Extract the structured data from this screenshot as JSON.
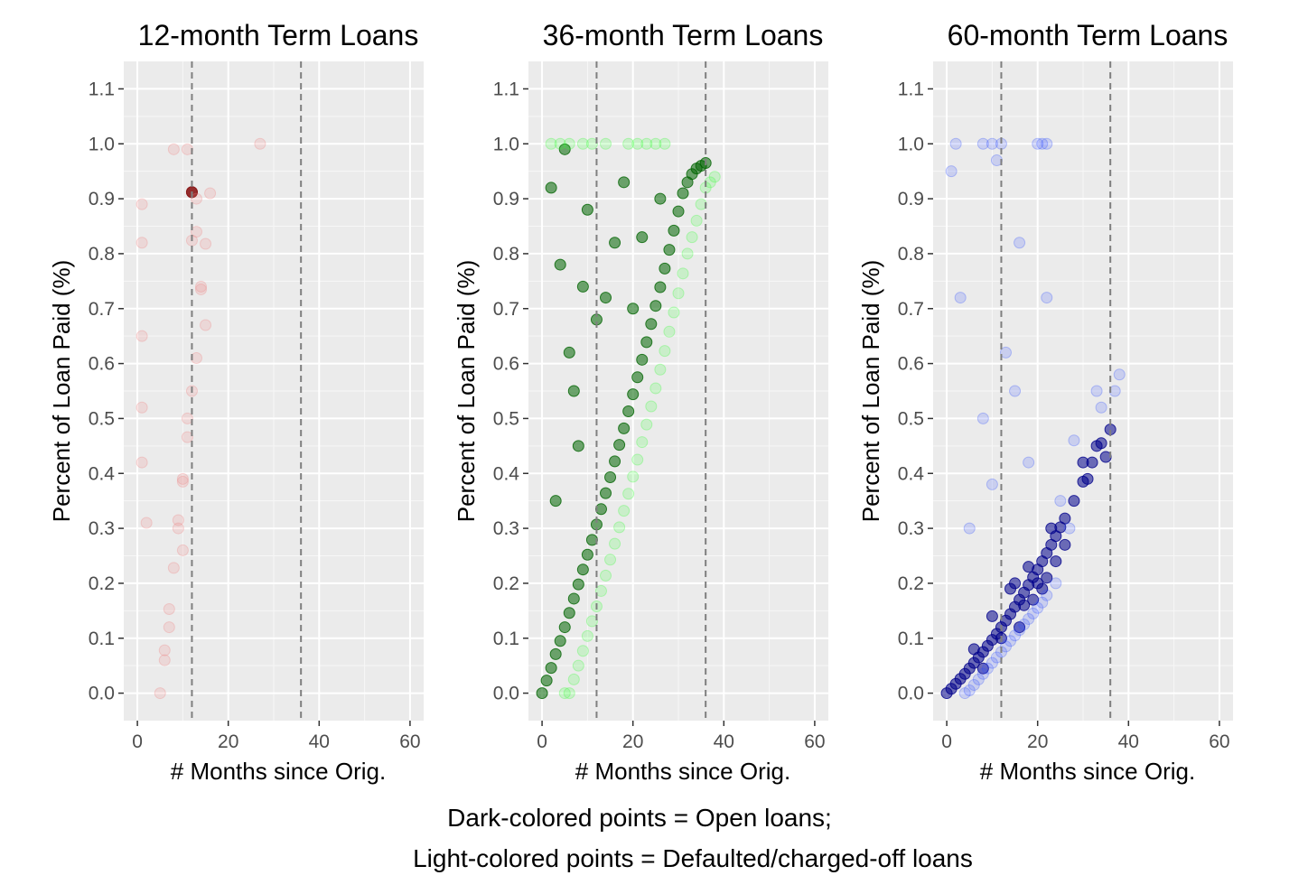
{
  "caption": {
    "line1": "Dark-colored points = Open loans;",
    "line2": "Light-colored points = Defaulted/charged-off loans"
  },
  "chart_data": [
    {
      "type": "scatter",
      "title": "12-month Term Loans",
      "xlabel": "# Months since Orig.",
      "ylabel": "Percent of Loan Paid (%)",
      "xlim": [
        -3,
        63
      ],
      "ylim": [
        -0.05,
        1.15
      ],
      "x_ticks": [
        0,
        20,
        40,
        60
      ],
      "y_ticks": [
        0.0,
        0.1,
        0.2,
        0.3,
        0.4,
        0.5,
        0.6,
        0.7,
        0.8,
        0.9,
        1.0,
        1.1
      ],
      "vlines": [
        12,
        36
      ],
      "grid": true,
      "colors": {
        "open": "#8b1a1a",
        "defaulted": "#f08080"
      },
      "series": [
        {
          "status": "open",
          "points": [
            [
              12,
              0.912
            ],
            [
              12,
              0.912
            ],
            [
              12,
              0.912
            ]
          ]
        },
        {
          "status": "defaulted",
          "points": [
            [
              5,
              0.0
            ],
            [
              6,
              0.078
            ],
            [
              7,
              0.153
            ],
            [
              8,
              0.228
            ],
            [
              9,
              0.3
            ],
            [
              9,
              0.315
            ],
            [
              10,
              0.385
            ],
            [
              11,
              0.466
            ],
            [
              12,
              0.55
            ],
            [
              12,
              0.824
            ],
            [
              14,
              0.735
            ],
            [
              15,
              0.818
            ],
            [
              13,
              0.9
            ],
            [
              11,
              0.99
            ],
            [
              8,
              0.99
            ],
            [
              27,
              1.0
            ],
            [
              1,
              0.65
            ],
            [
              1,
              0.82
            ],
            [
              1,
              0.52
            ],
            [
              1,
              0.42
            ],
            [
              2,
              0.31
            ],
            [
              1,
              0.89
            ],
            [
              15,
              0.67
            ],
            [
              13,
              0.61
            ],
            [
              10,
              0.26
            ],
            [
              10,
              0.39
            ],
            [
              7,
              0.12
            ],
            [
              6,
              0.06
            ],
            [
              11,
              0.5
            ],
            [
              14,
              0.74
            ],
            [
              13,
              0.84
            ],
            [
              16,
              0.91
            ]
          ]
        }
      ]
    },
    {
      "type": "scatter",
      "title": "36-month Term Loans",
      "xlabel": "# Months since Orig.",
      "ylabel": "Percent of Loan Paid (%)",
      "xlim": [
        -3,
        63
      ],
      "ylim": [
        -0.05,
        1.15
      ],
      "x_ticks": [
        0,
        20,
        40,
        60
      ],
      "y_ticks": [
        0.0,
        0.1,
        0.2,
        0.3,
        0.4,
        0.5,
        0.6,
        0.7,
        0.8,
        0.9,
        1.0,
        1.1
      ],
      "vlines": [
        12,
        36
      ],
      "grid": true,
      "colors": {
        "open": "#006400",
        "defaulted": "#32ff32"
      },
      "series": [
        {
          "status": "open",
          "points": [
            [
              0,
              0.0
            ],
            [
              1,
              0.023
            ],
            [
              2,
              0.046
            ],
            [
              3,
              0.071
            ],
            [
              4,
              0.095
            ],
            [
              5,
              0.12
            ],
            [
              6,
              0.146
            ],
            [
              7,
              0.172
            ],
            [
              8,
              0.198
            ],
            [
              9,
              0.225
            ],
            [
              10,
              0.252
            ],
            [
              11,
              0.279
            ],
            [
              12,
              0.307
            ],
            [
              13,
              0.335
            ],
            [
              14,
              0.364
            ],
            [
              15,
              0.393
            ],
            [
              16,
              0.422
            ],
            [
              17,
              0.452
            ],
            [
              18,
              0.482
            ],
            [
              19,
              0.513
            ],
            [
              20,
              0.544
            ],
            [
              21,
              0.575
            ],
            [
              22,
              0.607
            ],
            [
              23,
              0.639
            ],
            [
              24,
              0.672
            ],
            [
              25,
              0.705
            ],
            [
              26,
              0.739
            ],
            [
              27,
              0.773
            ],
            [
              28,
              0.807
            ],
            [
              29,
              0.842
            ],
            [
              30,
              0.877
            ],
            [
              31,
              0.91
            ],
            [
              32,
              0.93
            ],
            [
              33,
              0.945
            ],
            [
              34,
              0.955
            ],
            [
              35,
              0.96
            ],
            [
              36,
              0.965
            ],
            [
              4,
              0.78
            ],
            [
              6,
              0.62
            ],
            [
              8,
              0.45
            ],
            [
              10,
              0.88
            ],
            [
              14,
              0.72
            ],
            [
              18,
              0.93
            ],
            [
              22,
              0.83
            ],
            [
              26,
              0.9
            ],
            [
              3,
              0.35
            ],
            [
              7,
              0.55
            ],
            [
              12,
              0.68
            ],
            [
              16,
              0.82
            ],
            [
              2,
              0.92
            ],
            [
              5,
              0.99
            ],
            [
              9,
              0.74
            ],
            [
              20,
              0.7
            ]
          ]
        },
        {
          "status": "defaulted",
          "points": [
            [
              5,
              0.0
            ],
            [
              6,
              0.0
            ],
            [
              7,
              0.025
            ],
            [
              8,
              0.05
            ],
            [
              9,
              0.077
            ],
            [
              10,
              0.104
            ],
            [
              11,
              0.131
            ],
            [
              12,
              0.158
            ],
            [
              13,
              0.186
            ],
            [
              14,
              0.214
            ],
            [
              15,
              0.243
            ],
            [
              16,
              0.272
            ],
            [
              17,
              0.302
            ],
            [
              18,
              0.332
            ],
            [
              19,
              0.363
            ],
            [
              20,
              0.394
            ],
            [
              21,
              0.425
            ],
            [
              22,
              0.457
            ],
            [
              23,
              0.489
            ],
            [
              24,
              0.522
            ],
            [
              25,
              0.555
            ],
            [
              26,
              0.589
            ],
            [
              27,
              0.623
            ],
            [
              28,
              0.658
            ],
            [
              29,
              0.693
            ],
            [
              30,
              0.728
            ],
            [
              31,
              0.764
            ],
            [
              32,
              0.8
            ],
            [
              33,
              0.83
            ],
            [
              34,
              0.86
            ],
            [
              35,
              0.89
            ],
            [
              36,
              0.92
            ],
            [
              37,
              0.93
            ],
            [
              38,
              0.94
            ],
            [
              2,
              1.0
            ],
            [
              4,
              1.0
            ],
            [
              6,
              1.0
            ],
            [
              9,
              1.0
            ],
            [
              11,
              1.0
            ],
            [
              14,
              1.0
            ],
            [
              19,
              1.0
            ],
            [
              21,
              1.0
            ],
            [
              23,
              1.0
            ],
            [
              25,
              1.0
            ],
            [
              27,
              1.0
            ]
          ]
        }
      ]
    },
    {
      "type": "scatter",
      "title": "60-month Term Loans",
      "xlabel": "# Months since Orig.",
      "ylabel": "Percent of Loan Paid (%)",
      "xlim": [
        -3,
        63
      ],
      "ylim": [
        -0.05,
        1.15
      ],
      "x_ticks": [
        0,
        20,
        40,
        60
      ],
      "y_ticks": [
        0.0,
        0.1,
        0.2,
        0.3,
        0.4,
        0.5,
        0.6,
        0.7,
        0.8,
        0.9,
        1.0,
        1.1
      ],
      "vlines": [
        12,
        36
      ],
      "grid": true,
      "colors": {
        "open": "#00008b",
        "defaulted": "#3050ff"
      },
      "series": [
        {
          "status": "open",
          "points": [
            [
              0,
              0.0
            ],
            [
              1,
              0.008
            ],
            [
              2,
              0.017
            ],
            [
              3,
              0.026
            ],
            [
              4,
              0.035
            ],
            [
              5,
              0.045
            ],
            [
              6,
              0.055
            ],
            [
              7,
              0.065
            ],
            [
              8,
              0.075
            ],
            [
              9,
              0.086
            ],
            [
              10,
              0.097
            ],
            [
              11,
              0.108
            ],
            [
              12,
              0.12
            ],
            [
              13,
              0.132
            ],
            [
              14,
              0.144
            ],
            [
              15,
              0.157
            ],
            [
              16,
              0.17
            ],
            [
              17,
              0.183
            ],
            [
              18,
              0.197
            ],
            [
              19,
              0.211
            ],
            [
              20,
              0.225
            ],
            [
              21,
              0.24
            ],
            [
              22,
              0.255
            ],
            [
              23,
              0.27
            ],
            [
              24,
              0.286
            ],
            [
              25,
              0.302
            ],
            [
              26,
              0.318
            ],
            [
              28,
              0.35
            ],
            [
              30,
              0.385
            ],
            [
              32,
              0.42
            ],
            [
              34,
              0.455
            ],
            [
              36,
              0.48
            ],
            [
              6,
              0.08
            ],
            [
              10,
              0.14
            ],
            [
              14,
              0.19
            ],
            [
              18,
              0.23
            ],
            [
              20,
              0.2
            ],
            [
              22,
              0.21
            ],
            [
              17,
              0.16
            ],
            [
              12,
              0.1
            ],
            [
              8,
              0.045
            ],
            [
              16,
              0.12
            ],
            [
              19,
              0.17
            ],
            [
              21,
              0.19
            ],
            [
              24,
              0.24
            ],
            [
              26,
              0.27
            ],
            [
              15,
              0.2
            ],
            [
              23,
              0.3
            ],
            [
              30,
              0.42
            ],
            [
              33,
              0.45
            ],
            [
              35,
              0.43
            ],
            [
              31,
              0.39
            ]
          ]
        },
        {
          "status": "defaulted",
          "points": [
            [
              4,
              0.0
            ],
            [
              5,
              0.005
            ],
            [
              6,
              0.015
            ],
            [
              7,
              0.025
            ],
            [
              8,
              0.035
            ],
            [
              9,
              0.045
            ],
            [
              10,
              0.055
            ],
            [
              11,
              0.065
            ],
            [
              12,
              0.075
            ],
            [
              13,
              0.085
            ],
            [
              14,
              0.095
            ],
            [
              15,
              0.105
            ],
            [
              16,
              0.115
            ],
            [
              17,
              0.125
            ],
            [
              18,
              0.135
            ],
            [
              19,
              0.145
            ],
            [
              20,
              0.155
            ],
            [
              21,
              0.165
            ],
            [
              22,
              0.178
            ],
            [
              24,
              0.2
            ],
            [
              2,
              1.0
            ],
            [
              8,
              1.0
            ],
            [
              10,
              1.0
            ],
            [
              12,
              1.0
            ],
            [
              20,
              1.0
            ],
            [
              21,
              1.0
            ],
            [
              22,
              1.0
            ],
            [
              1,
              0.95
            ],
            [
              11,
              0.97
            ],
            [
              13,
              0.62
            ],
            [
              15,
              0.55
            ],
            [
              8,
              0.5
            ],
            [
              22,
              0.72
            ],
            [
              33,
              0.55
            ],
            [
              34,
              0.52
            ],
            [
              38,
              0.58
            ],
            [
              37,
              0.55
            ],
            [
              25,
              0.35
            ],
            [
              27,
              0.3
            ],
            [
              3,
              0.72
            ],
            [
              16,
              0.82
            ],
            [
              18,
              0.42
            ],
            [
              10,
              0.38
            ],
            [
              5,
              0.3
            ],
            [
              28,
              0.46
            ]
          ]
        }
      ]
    }
  ]
}
